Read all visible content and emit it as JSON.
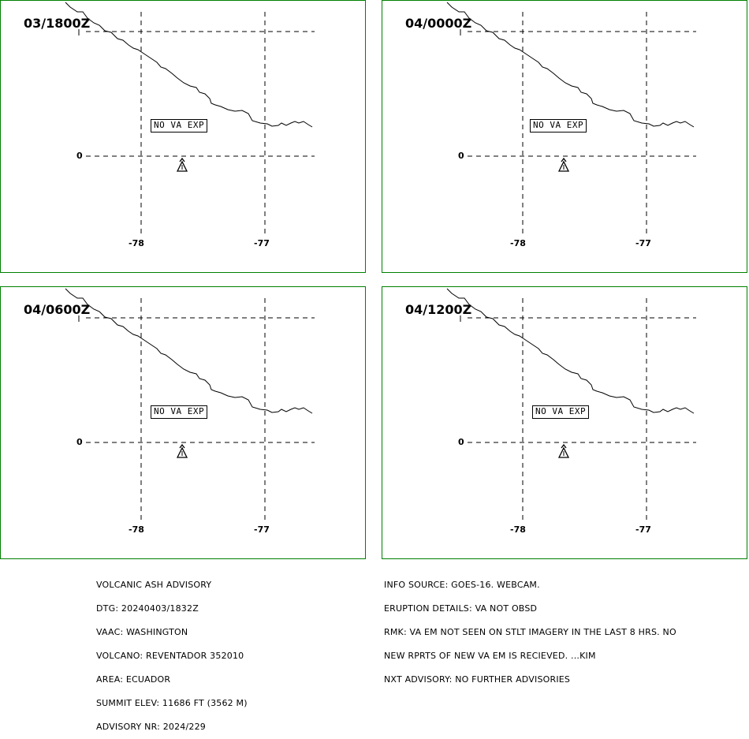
{
  "panels": [
    {
      "time": "03/1800Z",
      "label": "NO VA EXP"
    },
    {
      "time": "04/0000Z",
      "label": "NO VA EXP"
    },
    {
      "time": "04/0600Z",
      "label": "NO VA EXP"
    },
    {
      "time": "04/1200Z",
      "label": "NO VA EXP"
    }
  ],
  "grid": {
    "lat_label": "0",
    "lon_labels": [
      "-78",
      "-77"
    ]
  },
  "advisory_left": [
    "VOLCANIC ASH ADVISORY",
    "DTG: 20240403/1832Z",
    "VAAC: WASHINGTON",
    "VOLCANO: REVENTADOR 352010",
    "AREA: ECUADOR",
    "SUMMIT ELEV: 11686 FT (3562 M)",
    "ADVISORY NR: 2024/229"
  ],
  "advisory_right": [
    "INFO SOURCE: GOES-16. WEBCAM.",
    "ERUPTION DETAILS: VA NOT OBSD",
    "RMK: VA EM NOT SEEN ON STLT IMAGERY IN THE LAST 8 HRS. NO",
    "NEW RPRTS OF NEW VA EM IS RECIEVED. ...KIM",
    "NXT ADVISORY: NO FURTHER ADVISORIES"
  ],
  "colors": {
    "panel_border": "#008000",
    "ink": "#000000"
  }
}
